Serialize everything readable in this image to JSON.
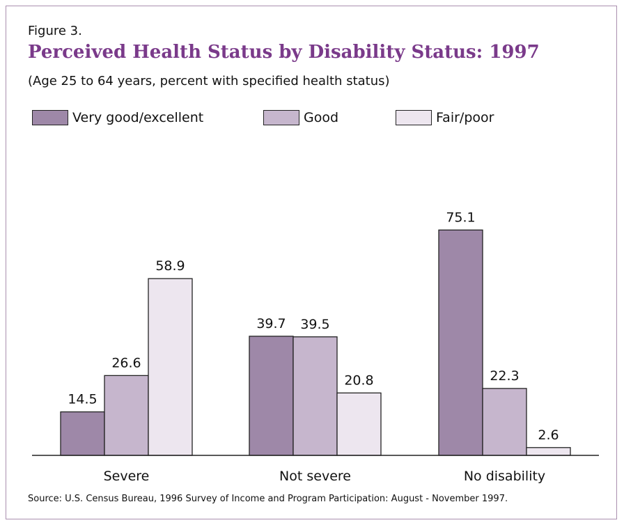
{
  "figure_label": "Figure 3.",
  "title": "Perceived Health Status by Disability Status: 1997",
  "subtitle": "(Age 25 to 64 years, percent with specified health status)",
  "source": "Source: U.S. Census Bureau, 1996 Survey of Income and Program Participation: August - November 1997.",
  "colors": {
    "very_good_excellent": "#9e88a8",
    "good": "#c6b6cd",
    "fair_poor": "#ede6ef",
    "frame": "#a98fae",
    "title": "#7a3a8a"
  },
  "chart_data": {
    "type": "bar",
    "categories": [
      "Severe",
      "Not severe",
      "No disability"
    ],
    "series": [
      {
        "name": "Very good/excellent",
        "values": [
          14.5,
          39.7,
          75.1
        ]
      },
      {
        "name": "Good",
        "values": [
          26.6,
          39.5,
          22.3
        ]
      },
      {
        "name": "Fair/poor",
        "values": [
          58.9,
          20.8,
          2.6
        ]
      }
    ],
    "value_labels": [
      [
        "14.5",
        "39.7",
        "75.1"
      ],
      [
        "26.6",
        "39.5",
        "22.3"
      ],
      [
        "58.9",
        "20.8",
        "2.6"
      ]
    ],
    "ylim": [
      0,
      100
    ],
    "grid": false,
    "legend_position": "top-left"
  }
}
